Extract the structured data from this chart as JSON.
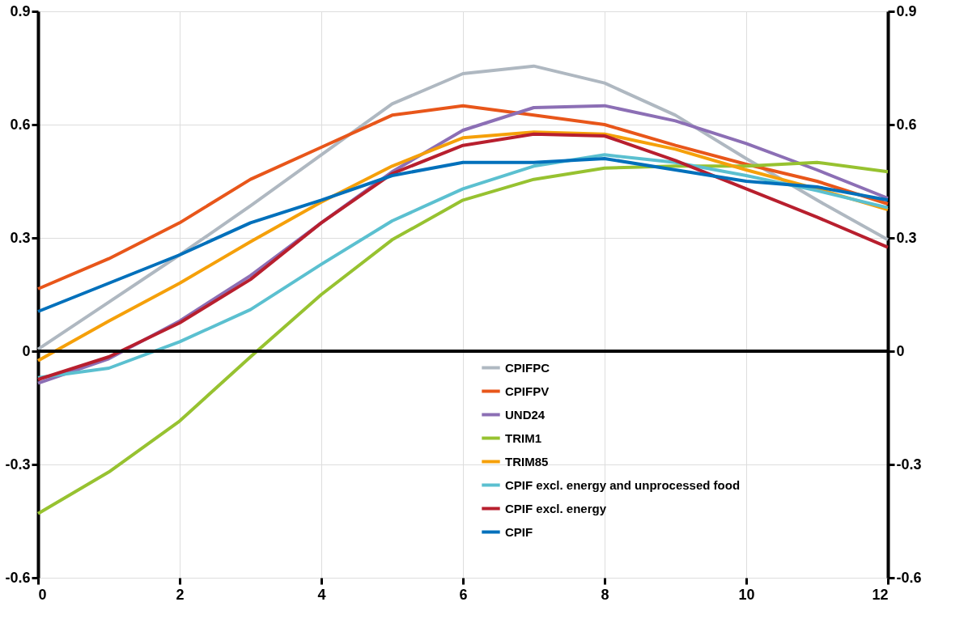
{
  "chart_data": {
    "type": "line",
    "x": [
      0,
      1,
      2,
      3,
      4,
      5,
      6,
      7,
      8,
      9,
      10,
      11,
      12
    ],
    "series": [
      {
        "name": "CPIFPC",
        "color": "#afb8c1",
        "values": [
          0.005,
          0.13,
          0.255,
          0.385,
          0.52,
          0.655,
          0.735,
          0.755,
          0.71,
          0.625,
          0.51,
          0.4,
          0.295
        ]
      },
      {
        "name": "CPIFPV",
        "color": "#e8561a",
        "values": [
          0.165,
          0.245,
          0.34,
          0.455,
          0.54,
          0.625,
          0.65,
          0.625,
          0.6,
          0.545,
          0.495,
          0.45,
          0.39
        ]
      },
      {
        "name": "UND24",
        "color": "#8c6fb5",
        "values": [
          -0.085,
          -0.02,
          0.08,
          0.2,
          0.34,
          0.475,
          0.585,
          0.645,
          0.65,
          0.61,
          0.55,
          0.48,
          0.405
        ]
      },
      {
        "name": "TRIM1",
        "color": "#97c230",
        "values": [
          -0.43,
          -0.32,
          -0.185,
          -0.015,
          0.15,
          0.295,
          0.4,
          0.455,
          0.485,
          0.49,
          0.49,
          0.5,
          0.475
        ]
      },
      {
        "name": "TRIM85",
        "color": "#f5a00a",
        "values": [
          -0.025,
          0.08,
          0.18,
          0.29,
          0.395,
          0.49,
          0.565,
          0.58,
          0.575,
          0.535,
          0.48,
          0.43,
          0.375
        ]
      },
      {
        "name": "CPIF excl. energy and unprocessed food",
        "color": "#5bc0d0",
        "values": [
          -0.07,
          -0.045,
          0.025,
          0.11,
          0.23,
          0.345,
          0.43,
          0.49,
          0.52,
          0.5,
          0.465,
          0.425,
          0.38
        ]
      },
      {
        "name": "CPIF excl. energy",
        "color": "#b81f2e",
        "values": [
          -0.075,
          -0.015,
          0.075,
          0.19,
          0.34,
          0.47,
          0.545,
          0.575,
          0.57,
          0.505,
          0.43,
          0.355,
          0.275
        ]
      },
      {
        "name": "CPIF",
        "color": "#0070bb",
        "values": [
          0.105,
          0.18,
          0.255,
          0.34,
          0.4,
          0.465,
          0.5,
          0.5,
          0.51,
          0.48,
          0.45,
          0.435,
          0.4
        ]
      }
    ],
    "xlim": [
      0,
      12
    ],
    "xticks": [
      0,
      2,
      4,
      6,
      8,
      10,
      12
    ],
    "ylim": [
      -0.6,
      0.9
    ],
    "yticks": [
      -0.6,
      -0.3,
      0,
      0.3,
      0.6,
      0.9
    ],
    "y2lim": [
      -0.6,
      0.9
    ],
    "y2ticks": [
      -0.6,
      -0.3,
      0,
      0.3,
      0.6,
      0.9
    ],
    "ref_lines": [
      {
        "axis": "y",
        "value": 0,
        "color": "#000000"
      }
    ],
    "grid": true,
    "legend": "bottom",
    "marker": "none",
    "line_style": "solid"
  }
}
